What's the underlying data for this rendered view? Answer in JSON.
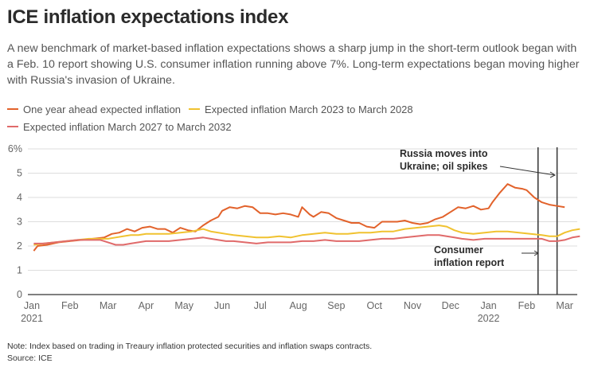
{
  "header": {
    "title": "ICE inflation expectations index",
    "subtitle": "A new benchmark of market-based inflation expectations shows a sharp jump in the short-term outlook began with a Feb. 10 report showing U.S. consumer inflation running above 7%. Long-term expectations began moving higher with Russia's invasion of Ukraine."
  },
  "legend": [
    {
      "label": "One year ahead expected inflation",
      "color": "#e2622b"
    },
    {
      "label": "Expected inflation March 2023 to March 2028",
      "color": "#f0c230"
    },
    {
      "label": "Expected inflation March 2027 to March 2032",
      "color": "#e06a6a"
    }
  ],
  "footer": {
    "note": "Note: Index based on trading in Treaury inflation protected securities and inflation swaps contracts.",
    "source": "Source: ICE"
  },
  "chart_data": {
    "type": "line",
    "title": "ICE inflation expectations index",
    "xlabel": "",
    "ylabel": "",
    "ylim": [
      0,
      6
    ],
    "y_ticks": [
      {
        "value": 0,
        "label": "0"
      },
      {
        "value": 1,
        "label": "1"
      },
      {
        "value": 2,
        "label": "2"
      },
      {
        "value": 3,
        "label": "3"
      },
      {
        "value": 4,
        "label": "4"
      },
      {
        "value": 5,
        "label": "5"
      },
      {
        "value": 6,
        "label": "6%"
      }
    ],
    "x_range_months": [
      0,
      14.4
    ],
    "x_ticks": [
      {
        "month": 0,
        "label": "Jan",
        "sublabel": "2021"
      },
      {
        "month": 1,
        "label": "Feb"
      },
      {
        "month": 2,
        "label": "Mar"
      },
      {
        "month": 3,
        "label": "Apr"
      },
      {
        "month": 4,
        "label": "May"
      },
      {
        "month": 5,
        "label": "Jun"
      },
      {
        "month": 6,
        "label": "Jul"
      },
      {
        "month": 7,
        "label": "Aug"
      },
      {
        "month": 8,
        "label": "Sep"
      },
      {
        "month": 9,
        "label": "Oct"
      },
      {
        "month": 10,
        "label": "Nov"
      },
      {
        "month": 11,
        "label": "Dec"
      },
      {
        "month": 12,
        "label": "Jan",
        "sublabel": "2022"
      },
      {
        "month": 13,
        "label": "Feb"
      },
      {
        "month": 14,
        "label": "Mar"
      }
    ],
    "grid": true,
    "legend_position": "top-left",
    "x_unit": "months since Jan 1 2021",
    "series": [
      {
        "name": "One year ahead expected inflation",
        "color": "#e2622b",
        "points": [
          [
            0.05,
            1.8
          ],
          [
            0.15,
            2.0
          ],
          [
            0.4,
            2.05
          ],
          [
            0.7,
            2.15
          ],
          [
            1.0,
            2.2
          ],
          [
            1.3,
            2.25
          ],
          [
            1.6,
            2.3
          ],
          [
            1.9,
            2.35
          ],
          [
            2.1,
            2.5
          ],
          [
            2.3,
            2.55
          ],
          [
            2.5,
            2.7
          ],
          [
            2.7,
            2.6
          ],
          [
            2.9,
            2.75
          ],
          [
            3.1,
            2.8
          ],
          [
            3.3,
            2.7
          ],
          [
            3.5,
            2.7
          ],
          [
            3.7,
            2.55
          ],
          [
            3.9,
            2.75
          ],
          [
            4.1,
            2.65
          ],
          [
            4.3,
            2.6
          ],
          [
            4.5,
            2.85
          ],
          [
            4.7,
            3.05
          ],
          [
            4.9,
            3.2
          ],
          [
            5.0,
            3.45
          ],
          [
            5.2,
            3.6
          ],
          [
            5.4,
            3.55
          ],
          [
            5.6,
            3.65
          ],
          [
            5.8,
            3.6
          ],
          [
            6.0,
            3.35
          ],
          [
            6.2,
            3.35
          ],
          [
            6.4,
            3.3
          ],
          [
            6.6,
            3.35
          ],
          [
            6.8,
            3.3
          ],
          [
            7.0,
            3.2
          ],
          [
            7.1,
            3.6
          ],
          [
            7.3,
            3.3
          ],
          [
            7.4,
            3.2
          ],
          [
            7.6,
            3.4
          ],
          [
            7.8,
            3.35
          ],
          [
            8.0,
            3.15
          ],
          [
            8.2,
            3.05
          ],
          [
            8.4,
            2.95
          ],
          [
            8.6,
            2.95
          ],
          [
            8.8,
            2.8
          ],
          [
            9.0,
            2.75
          ],
          [
            9.2,
            3.0
          ],
          [
            9.4,
            3.0
          ],
          [
            9.6,
            3.0
          ],
          [
            9.8,
            3.05
          ],
          [
            10.0,
            2.95
          ],
          [
            10.2,
            2.9
          ],
          [
            10.4,
            2.95
          ],
          [
            10.6,
            3.1
          ],
          [
            10.8,
            3.2
          ],
          [
            11.0,
            3.4
          ],
          [
            11.2,
            3.6
          ],
          [
            11.4,
            3.55
          ],
          [
            11.6,
            3.65
          ],
          [
            11.8,
            3.5
          ],
          [
            12.0,
            3.55
          ],
          [
            12.1,
            3.8
          ],
          [
            12.3,
            4.2
          ],
          [
            12.5,
            4.55
          ],
          [
            12.7,
            4.4
          ],
          [
            12.9,
            4.35
          ],
          [
            13.0,
            4.3
          ],
          [
            13.2,
            4.0
          ],
          [
            13.4,
            3.8
          ],
          [
            13.6,
            3.7
          ],
          [
            13.8,
            3.65
          ],
          [
            14.0,
            3.6
          ],
          [
            13.0,
            3.6
          ]
        ]
      },
      {
        "name": "Expected inflation March 2023 to March 2028",
        "color": "#f0c230",
        "points": [
          [
            0.05,
            2.05
          ],
          [
            0.3,
            2.1
          ],
          [
            0.6,
            2.15
          ],
          [
            0.9,
            2.2
          ],
          [
            1.2,
            2.25
          ],
          [
            1.5,
            2.3
          ],
          [
            1.8,
            2.3
          ],
          [
            2.0,
            2.3
          ],
          [
            2.2,
            2.35
          ],
          [
            2.4,
            2.4
          ],
          [
            2.6,
            2.45
          ],
          [
            2.8,
            2.45
          ],
          [
            3.0,
            2.5
          ],
          [
            3.3,
            2.5
          ],
          [
            3.6,
            2.5
          ],
          [
            3.9,
            2.55
          ],
          [
            4.2,
            2.6
          ],
          [
            4.5,
            2.7
          ],
          [
            4.7,
            2.6
          ],
          [
            4.9,
            2.55
          ],
          [
            5.1,
            2.5
          ],
          [
            5.3,
            2.45
          ],
          [
            5.6,
            2.4
          ],
          [
            5.9,
            2.35
          ],
          [
            6.2,
            2.35
          ],
          [
            6.5,
            2.4
          ],
          [
            6.8,
            2.35
          ],
          [
            7.1,
            2.45
          ],
          [
            7.4,
            2.5
          ],
          [
            7.7,
            2.55
          ],
          [
            8.0,
            2.5
          ],
          [
            8.3,
            2.5
          ],
          [
            8.6,
            2.55
          ],
          [
            8.9,
            2.55
          ],
          [
            9.2,
            2.6
          ],
          [
            9.5,
            2.6
          ],
          [
            9.8,
            2.7
          ],
          [
            10.1,
            2.75
          ],
          [
            10.4,
            2.8
          ],
          [
            10.7,
            2.85
          ],
          [
            10.9,
            2.8
          ],
          [
            11.1,
            2.65
          ],
          [
            11.3,
            2.55
          ],
          [
            11.6,
            2.5
          ],
          [
            11.9,
            2.55
          ],
          [
            12.2,
            2.6
          ],
          [
            12.5,
            2.6
          ],
          [
            12.8,
            2.55
          ],
          [
            13.1,
            2.5
          ],
          [
            13.4,
            2.45
          ],
          [
            13.6,
            2.4
          ],
          [
            13.8,
            2.4
          ],
          [
            14.0,
            2.55
          ],
          [
            14.2,
            2.65
          ],
          [
            14.4,
            2.7
          ]
        ]
      },
      {
        "name": "Expected inflation March 2027 to March 2032",
        "color": "#e06a6a",
        "points": [
          [
            0.05,
            2.1
          ],
          [
            0.3,
            2.1
          ],
          [
            0.6,
            2.15
          ],
          [
            0.9,
            2.2
          ],
          [
            1.2,
            2.25
          ],
          [
            1.5,
            2.25
          ],
          [
            1.8,
            2.25
          ],
          [
            2.0,
            2.15
          ],
          [
            2.2,
            2.05
          ],
          [
            2.4,
            2.05
          ],
          [
            2.6,
            2.1
          ],
          [
            2.8,
            2.15
          ],
          [
            3.0,
            2.2
          ],
          [
            3.3,
            2.2
          ],
          [
            3.6,
            2.2
          ],
          [
            3.9,
            2.25
          ],
          [
            4.2,
            2.3
          ],
          [
            4.5,
            2.35
          ],
          [
            4.7,
            2.3
          ],
          [
            4.9,
            2.25
          ],
          [
            5.1,
            2.2
          ],
          [
            5.3,
            2.2
          ],
          [
            5.6,
            2.15
          ],
          [
            5.9,
            2.1
          ],
          [
            6.2,
            2.15
          ],
          [
            6.5,
            2.15
          ],
          [
            6.8,
            2.15
          ],
          [
            7.1,
            2.2
          ],
          [
            7.4,
            2.2
          ],
          [
            7.7,
            2.25
          ],
          [
            8.0,
            2.2
          ],
          [
            8.3,
            2.2
          ],
          [
            8.6,
            2.2
          ],
          [
            8.9,
            2.25
          ],
          [
            9.2,
            2.3
          ],
          [
            9.5,
            2.3
          ],
          [
            9.8,
            2.35
          ],
          [
            10.1,
            2.4
          ],
          [
            10.4,
            2.45
          ],
          [
            10.7,
            2.45
          ],
          [
            10.9,
            2.4
          ],
          [
            11.1,
            2.35
          ],
          [
            11.3,
            2.3
          ],
          [
            11.6,
            2.25
          ],
          [
            11.9,
            2.3
          ],
          [
            12.2,
            2.3
          ],
          [
            12.5,
            2.3
          ],
          [
            12.8,
            2.3
          ],
          [
            13.1,
            2.3
          ],
          [
            13.4,
            2.3
          ],
          [
            13.6,
            2.2
          ],
          [
            13.8,
            2.2
          ],
          [
            14.0,
            2.25
          ],
          [
            14.2,
            2.35
          ],
          [
            14.4,
            2.4
          ]
        ]
      }
    ],
    "events": [
      {
        "month": 13.3,
        "label": "Consumer inflation report"
      },
      {
        "month": 13.8,
        "label": "Russia moves into Ukraine; oil spikes"
      }
    ],
    "annotations": [
      {
        "text_lines": [
          "Russia moves into",
          "Ukraine; oil spikes"
        ],
        "target_month": 13.8,
        "target_value": 4.8
      },
      {
        "text_lines": [
          "Consumer",
          "inflation report"
        ],
        "target_month": 13.2,
        "target_value": 1.65
      }
    ]
  }
}
